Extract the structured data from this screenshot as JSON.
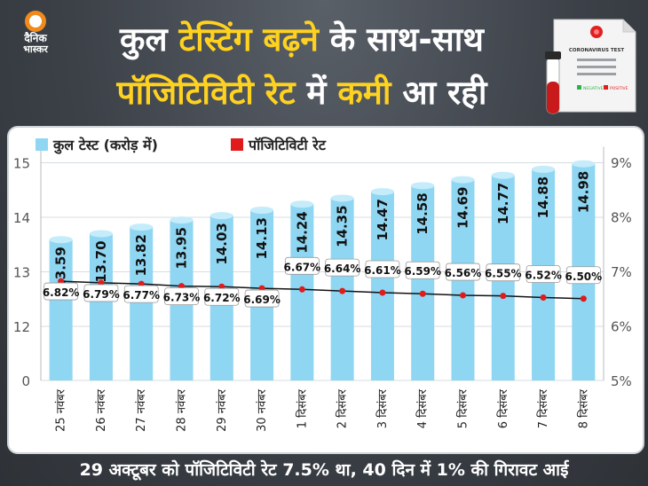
{
  "logo": {
    "line1": "दैनिक",
    "line2": "भास्कर",
    "icon": "sun-icon"
  },
  "header": {
    "line1_a": "कुल ",
    "line1_b": "टेस्टिंग बढ़ने",
    "line1_c": " के साथ-साथ",
    "line2_a": "पॉजिटिविटी रेट",
    "line2_b": " में ",
    "line2_c": "कमी",
    "line2_d": " आ रही"
  },
  "doc_icon": {
    "name": "coronavirus-test-document-icon",
    "title": "CORONAVIRUS TEST",
    "negative": "NEGATIVE",
    "positive": "POSITIVE"
  },
  "footer": "29 अक्टूबर को पॉजिटिविटी रेट 7.5% था, 40 दिन में 1% की गिरावट आई",
  "colors": {
    "bar": "#8fd6f2",
    "bar_dark": "#4aa7d6",
    "line": "#111111",
    "point": "#e01b1b",
    "highlight": "#ffd21f"
  },
  "chart_data": {
    "type": "bar",
    "legend": {
      "position": "top-left",
      "bar_label": "कुल टेस्ट (करोड़ में)",
      "line_label": "पॉजिटिविटी रेट"
    },
    "categories": [
      "25 नवंबर",
      "26 नवंबर",
      "27 नवंबर",
      "28 नवंबर",
      "29 नवंबर",
      "30 नवंबर",
      "1 दिसंबर",
      "2 दिसंबर",
      "3 दिसंबर",
      "4 दिसंबर",
      "5 दिसंबर",
      "6 दिसंबर",
      "7 दिसंबर",
      "8 दिसंबर"
    ],
    "series": [
      {
        "name": "कुल टेस्ट (करोड़ में)",
        "type": "bar",
        "axis": "left",
        "values": [
          13.59,
          13.7,
          13.82,
          13.95,
          14.03,
          14.13,
          14.24,
          14.35,
          14.47,
          14.58,
          14.69,
          14.77,
          14.88,
          14.98
        ],
        "labels": [
          "13.59",
          "13.70",
          "13.82",
          "13.95",
          "14.03",
          "14.13",
          "14.24",
          "14.35",
          "14.47",
          "14.58",
          "14.69",
          "14.77",
          "14.88",
          "14.98"
        ]
      },
      {
        "name": "पॉजिटिविटी रेट",
        "type": "line",
        "axis": "right",
        "values": [
          6.82,
          6.79,
          6.77,
          6.73,
          6.72,
          6.69,
          6.67,
          6.64,
          6.61,
          6.59,
          6.56,
          6.55,
          6.52,
          6.5
        ],
        "labels": [
          "6.82%",
          "6.79%",
          "6.77%",
          "6.73%",
          "6.72%",
          "6.69%",
          "6.67%",
          "6.64%",
          "6.61%",
          "6.59%",
          "6.56%",
          "6.55%",
          "6.52%",
          "6.50%"
        ]
      }
    ],
    "left_axis": {
      "ticks": [
        0,
        12,
        13,
        14,
        15
      ],
      "tick_labels": [
        "0",
        "12",
        "13",
        "14",
        "15"
      ],
      "note": "broken axis: 0 then 12-15"
    },
    "right_axis": {
      "ticks": [
        5,
        6,
        7,
        8,
        9
      ],
      "tick_labels": [
        "5%",
        "6%",
        "7%",
        "8%",
        "9%"
      ],
      "ylim": [
        5,
        9
      ]
    },
    "grid": true
  }
}
